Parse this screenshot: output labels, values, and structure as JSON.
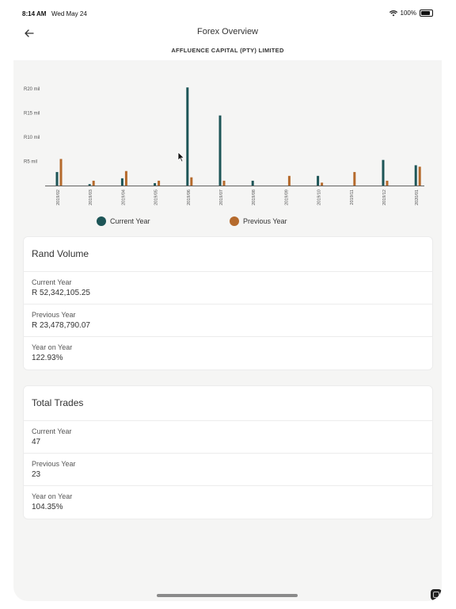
{
  "status_bar": {
    "time": "8:14 AM",
    "date": "Wed May 24",
    "battery": "100%"
  },
  "header": {
    "title": "Forex Overview",
    "subtitle": "AFFLUENCE CAPITAL (PTY) LIMITED"
  },
  "chart_data": {
    "type": "bar",
    "categories": [
      "2019/02",
      "2019/03",
      "2019/04",
      "2019/05",
      "2019/06",
      "2019/07",
      "2019/08",
      "2019/09",
      "2019/10",
      "2019/11",
      "2019/12",
      "2020/01"
    ],
    "series": [
      {
        "name": "Current Year",
        "color": "#1d5557",
        "values": [
          2.8,
          0.3,
          1.5,
          0.5,
          20.3,
          14.5,
          1.0,
          0,
          2.0,
          0,
          5.3,
          4.2
        ]
      },
      {
        "name": "Previous Year",
        "color": "#b56a2c",
        "values": [
          5.5,
          1.0,
          3.0,
          1.0,
          1.7,
          1.0,
          0,
          2.0,
          0.6,
          2.8,
          1.0,
          3.9
        ]
      }
    ],
    "y_ticks": [
      {
        "value": 5,
        "label": "R5 mil"
      },
      {
        "value": 10,
        "label": "R10 mil"
      },
      {
        "value": 15,
        "label": "R15 mil"
      },
      {
        "value": 20,
        "label": "R20 mil"
      }
    ],
    "ylim": [
      0,
      21
    ],
    "grid": false,
    "legend_position": "bottom"
  },
  "legend": {
    "current": "Current Year",
    "previous": "Previous Year"
  },
  "rand_volume": {
    "title": "Rand Volume",
    "current_label": "Current Year",
    "current_value": "R 52,342,105.25",
    "previous_label": "Previous Year",
    "previous_value": "R 23,478,790.07",
    "yoy_label": "Year on Year",
    "yoy_value": "122.93%"
  },
  "total_trades": {
    "title": "Total Trades",
    "current_label": "Current Year",
    "current_value": "47",
    "previous_label": "Previous Year",
    "previous_value": "23",
    "yoy_label": "Year on Year",
    "yoy_value": "104.35%"
  }
}
